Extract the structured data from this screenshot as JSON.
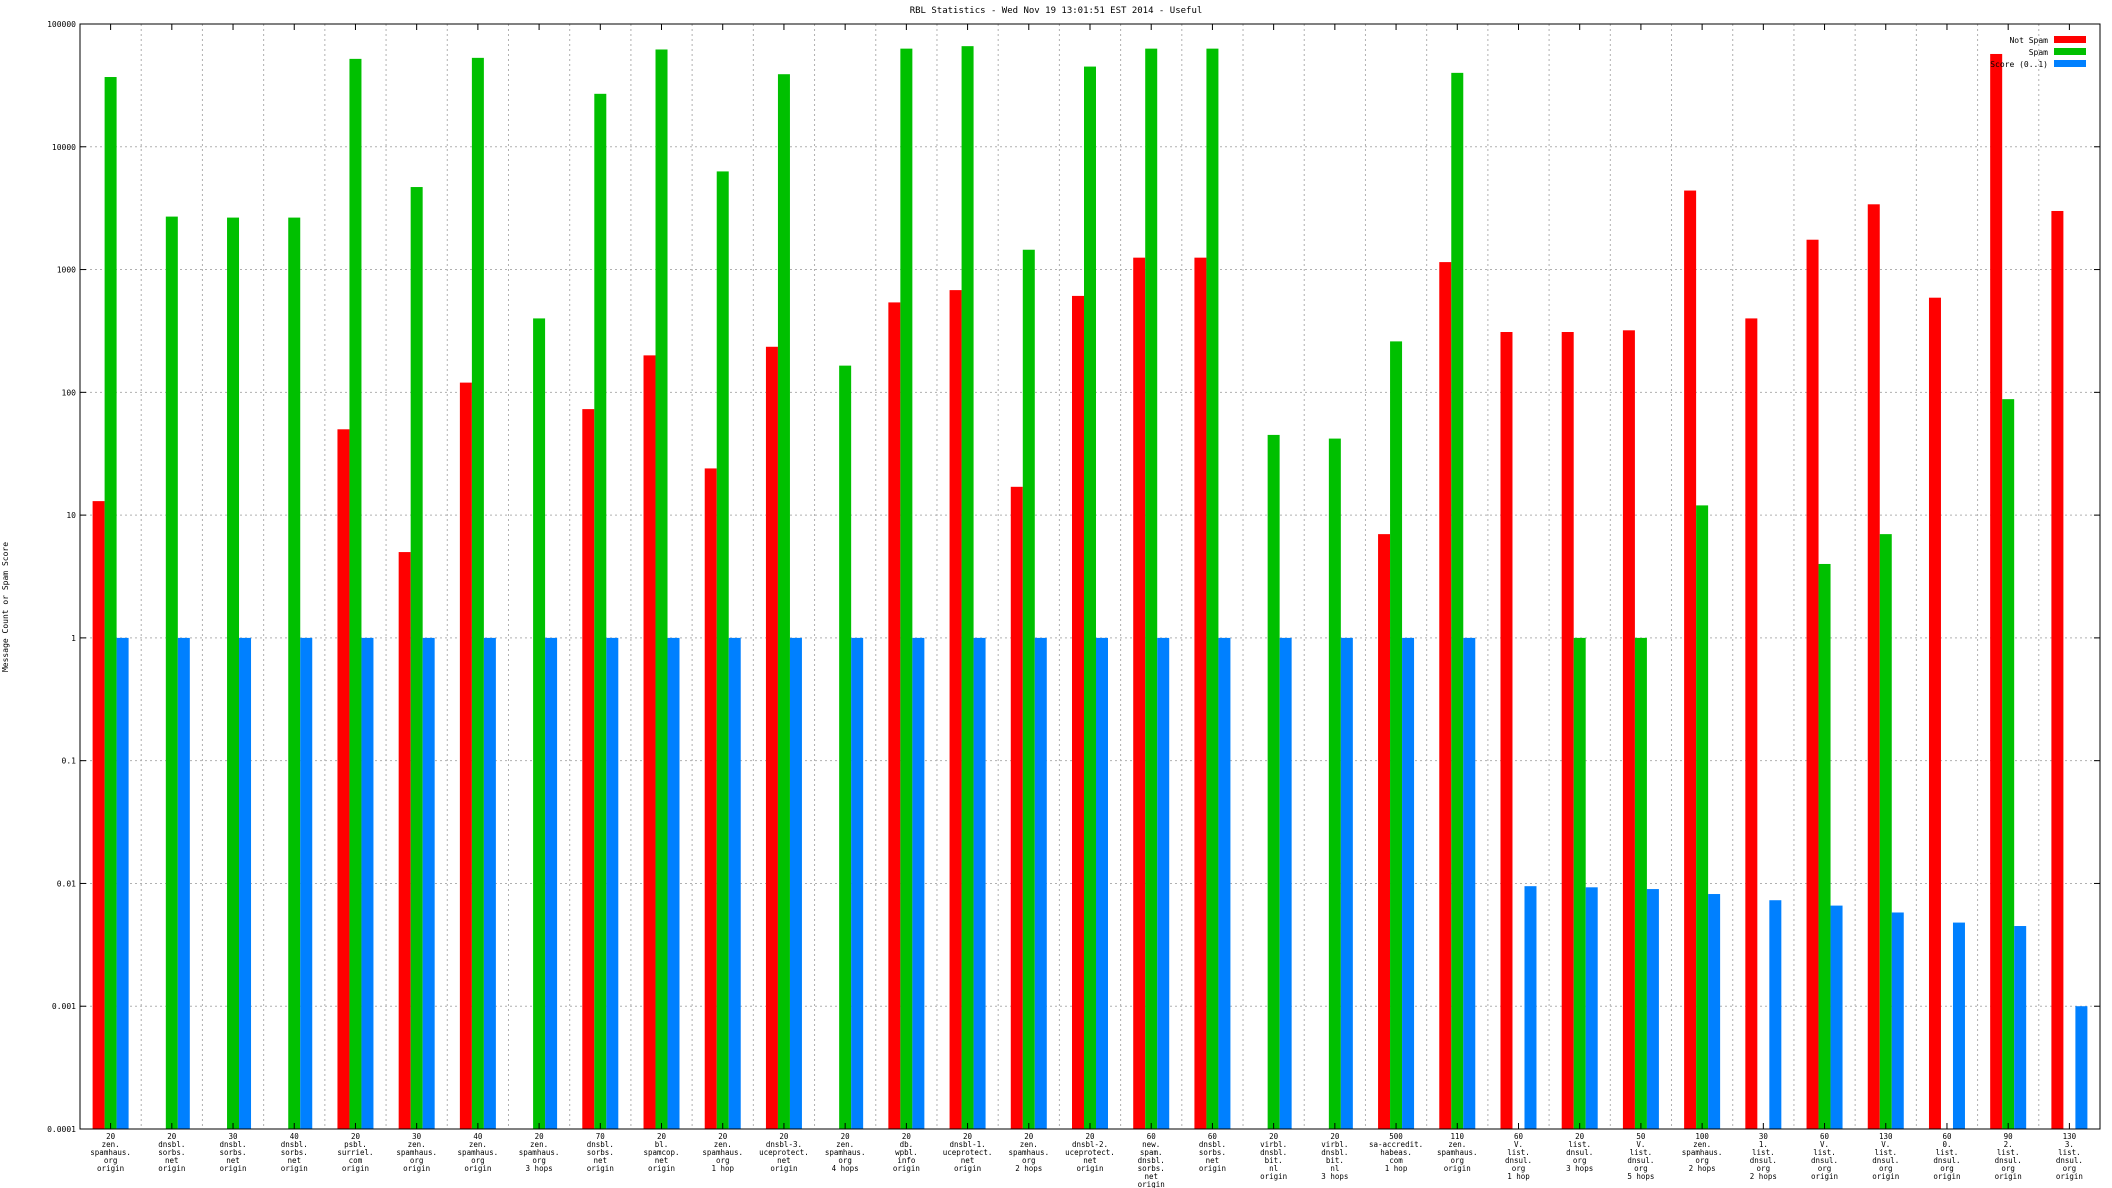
{
  "chart_data": {
    "type": "bar",
    "title": "RBL Statistics - Wed Nov 19 13:01:51 EST 2014 - Useful",
    "ylabel": "Message Count or Spam Score",
    "yscale": "log",
    "ylim": [
      0.0001,
      100000
    ],
    "yticks": [
      "0.0001",
      "0.001",
      "0.01",
      "0.1",
      "1",
      "10",
      "100",
      "1000",
      "10000",
      "100000"
    ],
    "grid": true,
    "legend_position": "top-right",
    "categories": [
      [
        "20",
        "zen.",
        "spamhaus.",
        "org",
        "origin"
      ],
      [
        "20",
        "dnsbl.",
        "sorbs.",
        "net",
        "origin"
      ],
      [
        "30",
        "dnsbl.",
        "sorbs.",
        "net",
        "origin"
      ],
      [
        "40",
        "dnsbl.",
        "sorbs.",
        "net",
        "origin"
      ],
      [
        "20",
        "psbl.",
        "surriel.",
        "com",
        "origin"
      ],
      [
        "30",
        "zen.",
        "spamhaus.",
        "org",
        "origin"
      ],
      [
        "40",
        "zen.",
        "spamhaus.",
        "org",
        "origin"
      ],
      [
        "20",
        "zen.",
        "spamhaus.",
        "org",
        "3 hops"
      ],
      [
        "70",
        "dnsbl.",
        "sorbs.",
        "net",
        "origin"
      ],
      [
        "20",
        "bl.",
        "spamcop.",
        "net",
        "origin"
      ],
      [
        "20",
        "zen.",
        "spamhaus.",
        "org",
        "1 hop"
      ],
      [
        "20",
        "dnsbl-3.",
        "uceprotect.",
        "net",
        "origin"
      ],
      [
        "20",
        "zen.",
        "spamhaus.",
        "org",
        "4 hops"
      ],
      [
        "20",
        "db.",
        "wpbl.",
        "info",
        "origin"
      ],
      [
        "20",
        "dnsbl-1.",
        "uceprotect.",
        "net",
        "origin"
      ],
      [
        "20",
        "zen.",
        "spamhaus.",
        "org",
        "2 hops"
      ],
      [
        "20",
        "dnsbl-2.",
        "uceprotect.",
        "net",
        "origin"
      ],
      [
        "60",
        "new.",
        "spam.",
        "dnsbl.",
        "sorbs.",
        "net",
        "origin"
      ],
      [
        "60",
        "dnsbl.",
        "sorbs.",
        "net",
        "origin"
      ],
      [
        "20",
        "virbl.",
        "dnsbl.",
        "bit.",
        "nl",
        "origin"
      ],
      [
        "20",
        "virbl.",
        "dnsbl.",
        "bit.",
        "nl",
        "3 hops"
      ],
      [
        "500",
        "sa-accredit.",
        "habeas.",
        "com",
        "1 hop"
      ],
      [
        "110",
        "zen.",
        "spamhaus.",
        "org",
        "origin"
      ],
      [
        "60",
        "V.",
        "list.",
        "dnsul.",
        "org",
        "1 hop"
      ],
      [
        "20",
        "list.",
        "dnsul.",
        "org",
        "3 hops"
      ],
      [
        "50",
        "V.",
        "list.",
        "dnsul.",
        "org",
        "5 hops"
      ],
      [
        "100",
        "zen.",
        "spamhaus.",
        "org",
        "2 hops"
      ],
      [
        "30",
        "1.",
        "list.",
        "dnsul.",
        "org",
        "2 hops"
      ],
      [
        "60",
        "V.",
        "list.",
        "dnsul.",
        "org",
        "origin"
      ],
      [
        "130",
        "V.",
        "list.",
        "dnsul.",
        "org",
        "origin"
      ],
      [
        "60",
        "0.",
        "list.",
        "dnsul.",
        "org",
        "origin"
      ],
      [
        "90",
        "2.",
        "list.",
        "dnsul.",
        "org",
        "origin"
      ],
      [
        "130",
        "3.",
        "list.",
        "dnsul.",
        "org",
        "origin"
      ]
    ],
    "series": [
      {
        "name": "Not Spam",
        "color": "#ff0000",
        "values": [
          13,
          0,
          0,
          0,
          50,
          5,
          120,
          0,
          73,
          200,
          24,
          235,
          0,
          540,
          680,
          17,
          610,
          1250,
          1250,
          0,
          0,
          7,
          1150,
          310,
          310,
          320,
          4400,
          400,
          1750,
          3400,
          590,
          57000,
          3000
        ]
      },
      {
        "name": "Spam",
        "color": "#00c000",
        "values": [
          37000,
          2700,
          2650,
          2650,
          52000,
          4700,
          53000,
          400,
          27000,
          62000,
          6300,
          39000,
          165,
          63000,
          66000,
          1450,
          45000,
          63000,
          63000,
          45,
          42,
          260,
          40000,
          0,
          1,
          1,
          12,
          0,
          4,
          7,
          0,
          88,
          0
        ]
      },
      {
        "name": "Score (0..1)",
        "color": "#0080ff",
        "values": [
          1,
          1,
          1,
          1,
          1,
          1,
          1,
          1,
          1,
          1,
          1,
          1,
          1,
          1,
          1,
          1,
          1,
          1,
          1,
          1,
          1,
          1,
          1,
          0.0095,
          0.0093,
          0.009,
          0.0082,
          0.0073,
          0.0066,
          0.0058,
          0.0048,
          0.0045,
          0.001
        ]
      }
    ]
  }
}
